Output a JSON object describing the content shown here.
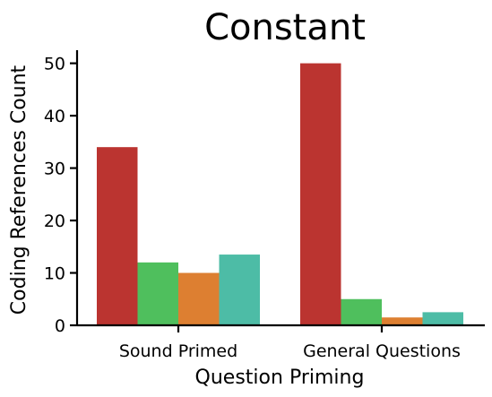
{
  "chart_data": {
    "type": "bar",
    "title": "Constant",
    "xlabel": "Question Priming",
    "ylabel": "Coding References Count",
    "categories": [
      "Sound Primed",
      "General Questions"
    ],
    "series": [
      {
        "color": "#bb3430",
        "values": [
          34,
          50
        ]
      },
      {
        "color": "#4fbf5d",
        "values": [
          12,
          5
        ]
      },
      {
        "color": "#dd7f31",
        "values": [
          10,
          1.5
        ]
      },
      {
        "color": "#4dbca6",
        "values": [
          13.5,
          2.5
        ]
      }
    ],
    "ylim": [
      0,
      52.5
    ],
    "yticks": [
      0,
      10,
      20,
      30,
      40,
      50
    ],
    "grid": false,
    "legend": "none"
  }
}
